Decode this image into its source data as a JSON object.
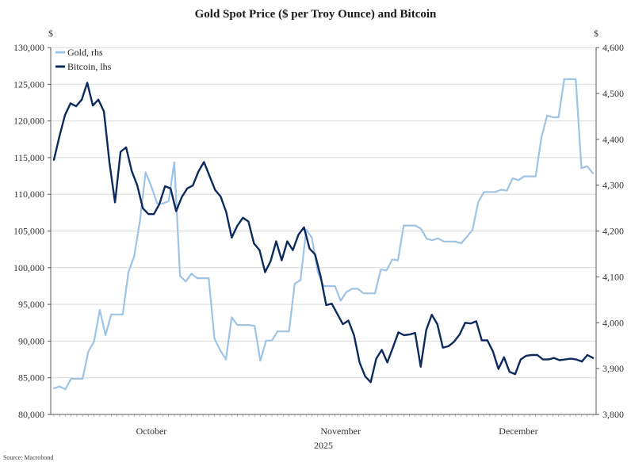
{
  "chart_data": {
    "type": "line",
    "title": "Gold Spot Price ($ per Troy Ounce) and Bitcoin",
    "left_axis_unit": "$",
    "right_axis_unit": "$",
    "x_labels": [
      "October",
      "November",
      "December"
    ],
    "x_year": "2025",
    "left_ylim": [
      80000,
      130000
    ],
    "left_ticks": [
      "80,000",
      "85,000",
      "90,000",
      "95,000",
      "100,000",
      "105,000",
      "110,000",
      "115,000",
      "120,000",
      "125,000",
      "130,000"
    ],
    "right_ylim": [
      3800,
      4600
    ],
    "right_ticks": [
      "3,800",
      "3,900",
      "4,000",
      "4,100",
      "4,200",
      "4,300",
      "4,400",
      "4,500",
      "4,600"
    ],
    "grid": true,
    "legend_position": "top-left",
    "source": "Source: Macrobond",
    "series": [
      {
        "name": "Gold, rhs",
        "axis": "right",
        "color": "#9dc3e6",
        "values": [
          3857,
          3861,
          3855,
          3878,
          3878,
          3878,
          3937,
          3959,
          4028,
          3973,
          4018,
          4018,
          4018,
          4110,
          4145,
          4222,
          4328,
          4297,
          4260,
          4260,
          4265,
          4350,
          4102,
          4090,
          4107,
          4097,
          4097,
          4097,
          3965,
          3940,
          3920,
          4012,
          3995,
          3995,
          3995,
          3993,
          3917,
          3961,
          3961,
          3981,
          3981,
          3981,
          4085,
          4093,
          4203,
          4185,
          4111,
          4080,
          4080,
          4080,
          4048,
          4067,
          4074,
          4074,
          4064,
          4064,
          4064,
          4116,
          4114,
          4138,
          4136,
          4212,
          4212,
          4212,
          4205,
          4183,
          4180,
          4184,
          4177,
          4177,
          4177,
          4173,
          4187,
          4203,
          4263,
          4285,
          4285,
          4285,
          4290,
          4288,
          4315,
          4311,
          4319,
          4319,
          4319,
          4403,
          4452,
          4448,
          4448,
          4531,
          4531,
          4531,
          4337,
          4341,
          4326
        ]
      },
      {
        "name": "Bitcoin, lhs",
        "axis": "left",
        "color": "#0d2a5e",
        "values": [
          114700,
          117900,
          120800,
          122400,
          122000,
          122900,
          125200,
          122100,
          122900,
          121300,
          114300,
          108900,
          115800,
          116400,
          113200,
          111200,
          108100,
          107300,
          107300,
          108700,
          111100,
          110800,
          107700,
          109600,
          110800,
          111200,
          113100,
          114400,
          112500,
          110600,
          109700,
          107600,
          104100,
          105700,
          106800,
          106300,
          103300,
          102400,
          99400,
          100900,
          103600,
          101000,
          103600,
          102400,
          104500,
          105500,
          102600,
          101800,
          98800,
          94900,
          95100,
          93700,
          92300,
          92800,
          90800,
          87100,
          85200,
          84400,
          87600,
          88800,
          87100,
          89100,
          91200,
          90800,
          90900,
          91100,
          86500,
          91500,
          93600,
          92300,
          89100,
          89300,
          89900,
          90900,
          92500,
          92400,
          92700,
          90100,
          90100,
          88600,
          86200,
          87800,
          85800,
          85500,
          87500,
          88000,
          88100,
          88100,
          87500,
          87500,
          87700,
          87400,
          87500,
          87600,
          87500,
          87200,
          88100,
          87700
        ]
      }
    ]
  }
}
